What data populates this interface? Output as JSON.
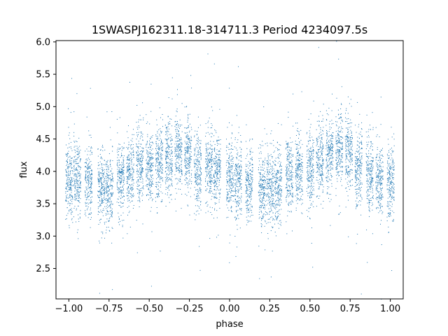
{
  "chart_data": {
    "type": "scatter",
    "title": "1SWASPJ162311.18-314711.3 Period 4234097.5s",
    "xlabel": "phase",
    "ylabel": "flux",
    "xlim": [
      -1.08,
      1.08
    ],
    "ylim": [
      2.03,
      6.02
    ],
    "xticks": [
      -1.0,
      -0.75,
      -0.5,
      -0.25,
      0.0,
      0.25,
      0.5,
      0.75,
      1.0
    ],
    "xtick_labels": [
      "−1.00",
      "−0.75",
      "−0.50",
      "−0.25",
      "0.00",
      "0.25",
      "0.50",
      "0.75",
      "1.00"
    ],
    "yticks": [
      2.5,
      3.0,
      3.5,
      4.0,
      4.5,
      5.0,
      5.5,
      6.0
    ],
    "ytick_labels": [
      "2.5",
      "3.0",
      "3.5",
      "4.0",
      "4.5",
      "5.0",
      "5.5",
      "6.0"
    ],
    "grid": false,
    "marker_color": "#1f77b4",
    "clusters": [
      {
        "x": -1.0,
        "flux": 3.85
      },
      {
        "x": -0.95,
        "flux": 3.9
      },
      {
        "x": -0.88,
        "flux": 3.85
      },
      {
        "x": -0.8,
        "flux": 3.75
      },
      {
        "x": -0.75,
        "flux": 3.7
      },
      {
        "x": -0.68,
        "flux": 3.9
      },
      {
        "x": -0.62,
        "flux": 3.95
      },
      {
        "x": -0.56,
        "flux": 4.1
      },
      {
        "x": -0.5,
        "flux": 4.05
      },
      {
        "x": -0.44,
        "flux": 4.15
      },
      {
        "x": -0.38,
        "flux": 4.2
      },
      {
        "x": -0.32,
        "flux": 4.3
      },
      {
        "x": -0.26,
        "flux": 4.25
      },
      {
        "x": -0.2,
        "flux": 4.0
      },
      {
        "x": -0.13,
        "flux": 4.05
      },
      {
        "x": -0.08,
        "flux": 4.0
      },
      {
        "x": 0.0,
        "flux": 3.9
      },
      {
        "x": 0.05,
        "flux": 3.85
      },
      {
        "x": 0.12,
        "flux": 3.8
      },
      {
        "x": 0.2,
        "flux": 3.7
      },
      {
        "x": 0.25,
        "flux": 3.75
      },
      {
        "x": 0.3,
        "flux": 3.8
      },
      {
        "x": 0.37,
        "flux": 3.95
      },
      {
        "x": 0.43,
        "flux": 4.0
      },
      {
        "x": 0.5,
        "flux": 4.05
      },
      {
        "x": 0.56,
        "flux": 4.15
      },
      {
        "x": 0.62,
        "flux": 4.25
      },
      {
        "x": 0.68,
        "flux": 4.35
      },
      {
        "x": 0.74,
        "flux": 4.3
      },
      {
        "x": 0.8,
        "flux": 4.05
      },
      {
        "x": 0.87,
        "flux": 3.95
      },
      {
        "x": 0.93,
        "flux": 3.85
      },
      {
        "x": 1.0,
        "flux": 3.85
      }
    ]
  }
}
